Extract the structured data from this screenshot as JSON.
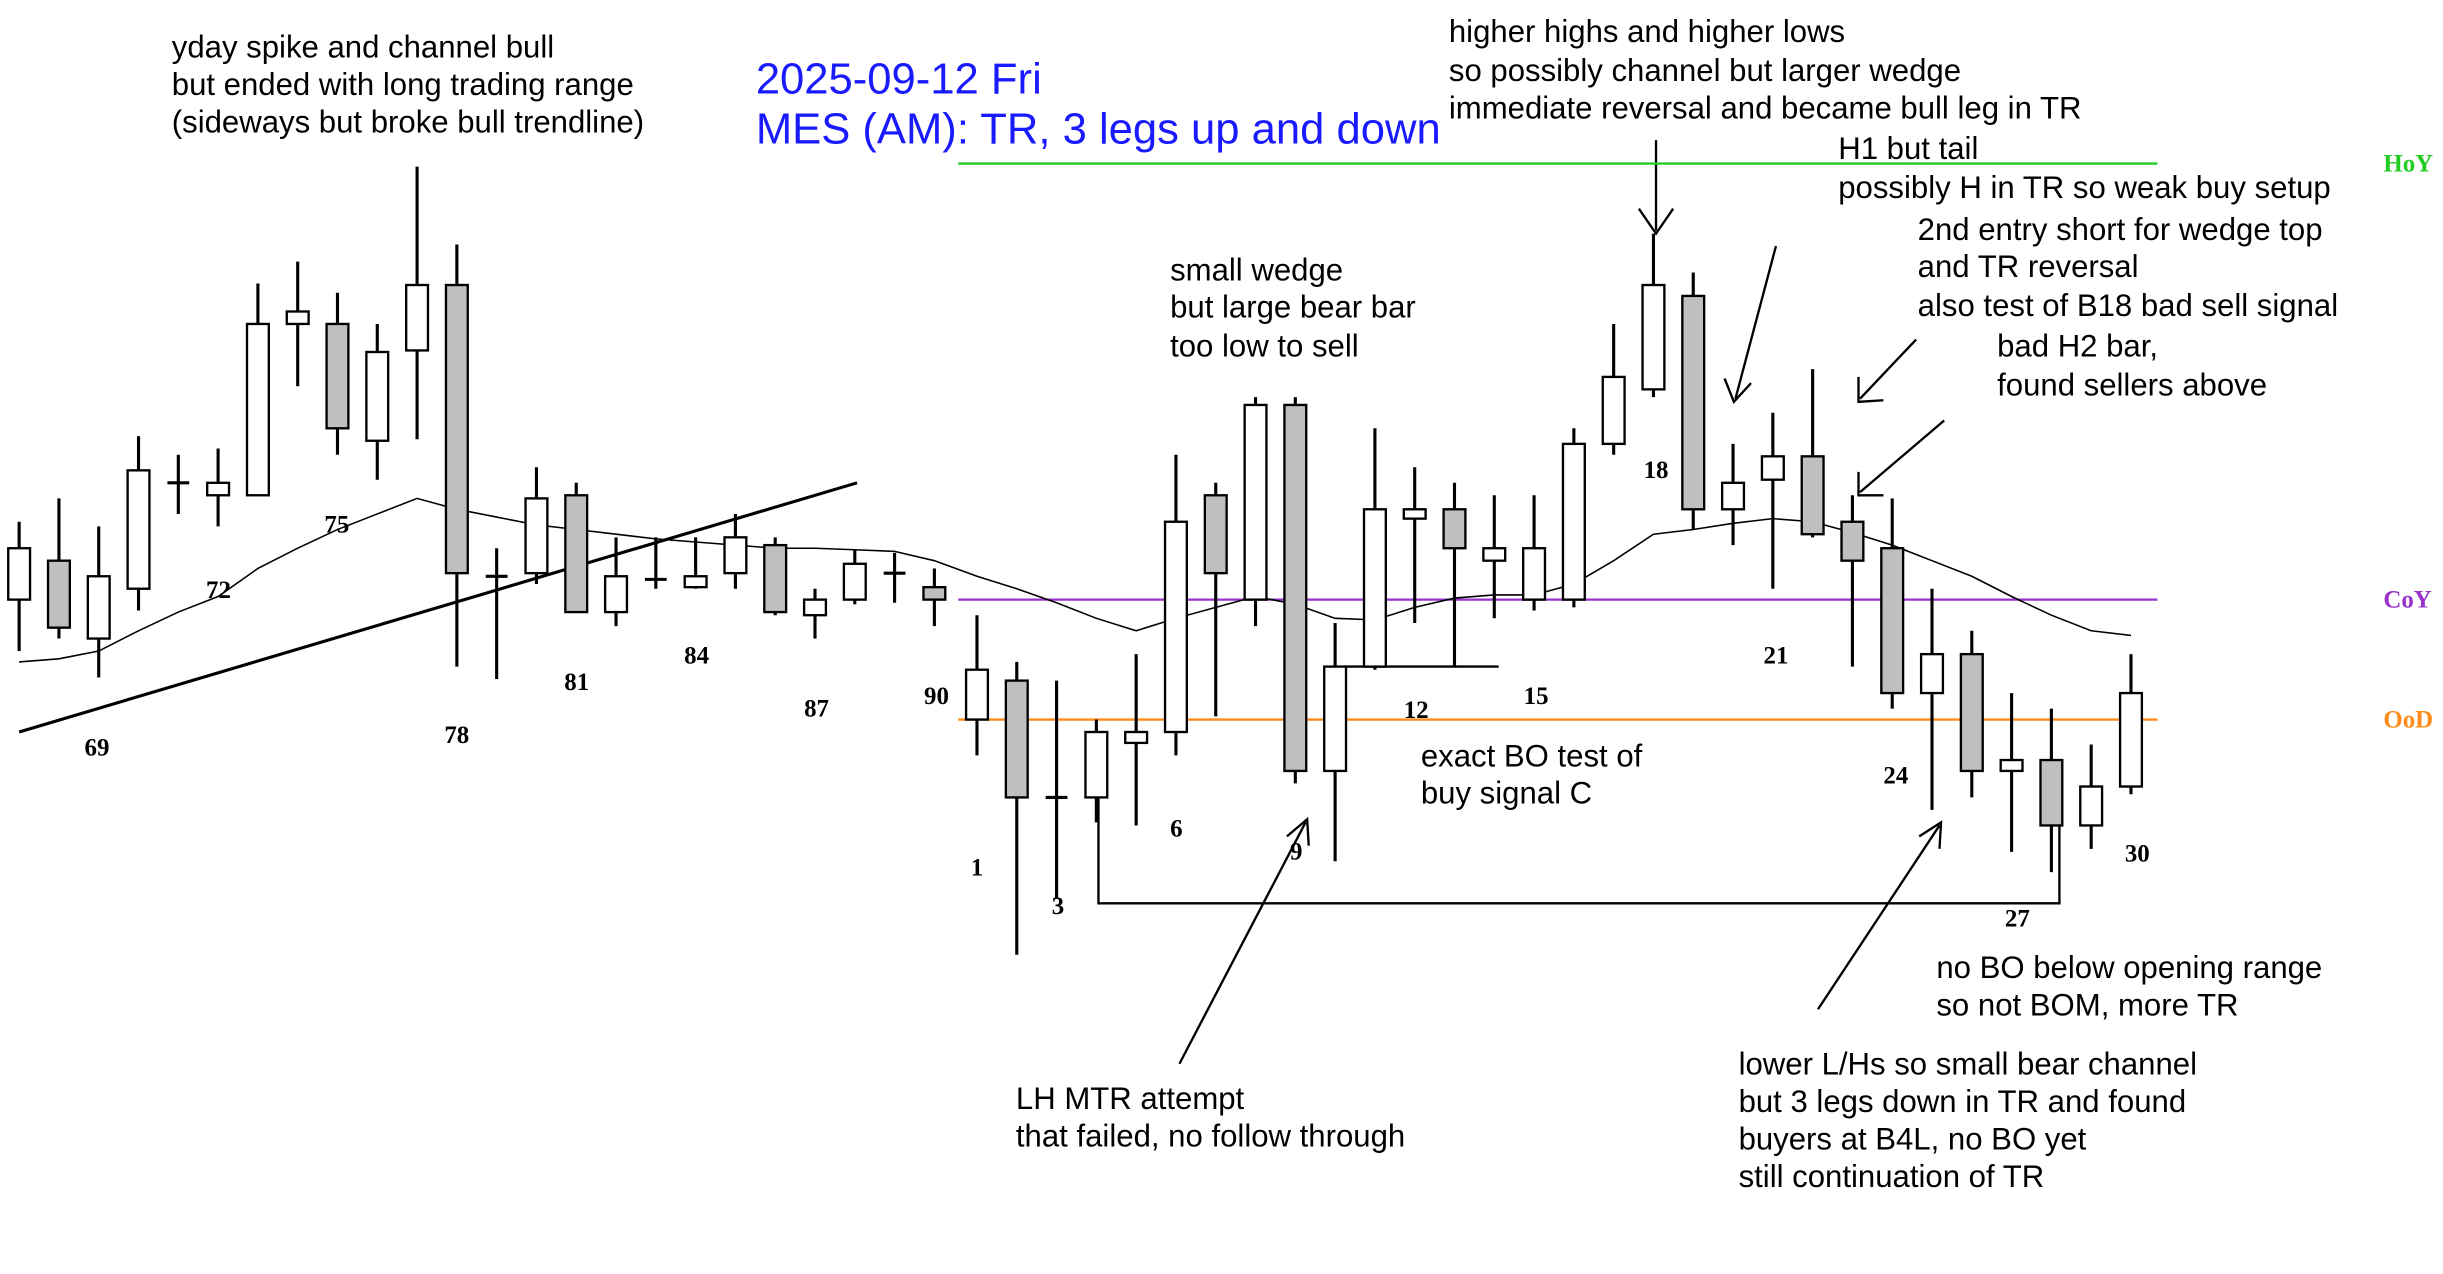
{
  "chart_data": {
    "type": "candlestick",
    "title": "2025-09-12 Fri",
    "subtitle": "MES (AM): TR, 3 legs up and down",
    "ylim": [
      6500,
      6581.8
    ],
    "prior_session": [
      [
        6543.3,
        6548.3,
        6540.0,
        6546.6
      ],
      [
        6545.8,
        6549.8,
        6540.8,
        6541.5
      ],
      [
        6540.8,
        6548.0,
        6538.3,
        6544.8
      ],
      [
        6544.0,
        6553.8,
        6542.6,
        6551.6
      ],
      [
        6550.8,
        6552.6,
        6548.8,
        6550.8
      ],
      [
        6550.0,
        6553.0,
        6548.0,
        6550.8
      ],
      [
        6550.0,
        6563.6,
        6550.0,
        6561.0
      ],
      [
        6561.0,
        6565.0,
        6557.0,
        6561.8
      ],
      [
        6561.0,
        6563.0,
        6552.6,
        6554.3
      ],
      [
        6553.5,
        6561.0,
        6551.0,
        6559.2
      ],
      [
        6559.3,
        6571.1,
        6553.6,
        6563.5
      ],
      [
        6563.5,
        6566.1,
        6539.0,
        6545.0
      ],
      [
        6544.8,
        6546.6,
        6538.2,
        6544.8
      ],
      [
        6545.0,
        6551.8,
        6544.3,
        6549.8
      ],
      [
        6550.0,
        6550.8,
        6542.5,
        6542.5
      ],
      [
        6542.5,
        6547.3,
        6541.6,
        6544.8
      ],
      [
        6544.6,
        6547.3,
        6544.0,
        6544.6
      ],
      [
        6544.1,
        6547.3,
        6544.0,
        6544.8
      ],
      [
        6545.0,
        6548.8,
        6544.0,
        6547.3
      ],
      [
        6546.8,
        6547.3,
        6542.3,
        6542.5
      ],
      [
        6542.3,
        6544.0,
        6540.8,
        6543.3
      ],
      [
        6543.3,
        6546.5,
        6543.0,
        6545.6
      ],
      [
        6545.0,
        6546.3,
        6543.1,
        6545.0
      ],
      [
        6544.1,
        6545.3,
        6541.6,
        6543.3
      ]
    ],
    "session": [
      [
        6535.6,
        6542.3,
        6533.3,
        6538.8
      ],
      [
        6538.1,
        6539.3,
        6520.5,
        6530.6
      ],
      [
        6530.6,
        6538.1,
        6524.1,
        6530.6
      ],
      [
        6530.6,
        6535.6,
        6529.0,
        6534.8
      ],
      [
        6534.1,
        6539.8,
        6528.8,
        6534.8
      ],
      [
        6534.8,
        6552.6,
        6533.3,
        6548.3
      ],
      [
        6550.0,
        6550.8,
        6535.8,
        6545.0
      ],
      [
        6543.3,
        6556.3,
        6541.6,
        6555.8
      ],
      [
        6555.8,
        6556.3,
        6531.5,
        6532.3
      ],
      [
        6532.3,
        6541.8,
        6526.5,
        6539.0
      ],
      [
        6539.0,
        6554.3,
        6538.8,
        6549.1
      ],
      [
        6548.5,
        6551.8,
        6541.8,
        6549.1
      ],
      [
        6549.1,
        6550.8,
        6539.0,
        6546.6
      ],
      [
        6545.8,
        6550.0,
        6542.1,
        6546.6
      ],
      [
        6543.3,
        6550.0,
        6542.6,
        6546.6
      ],
      [
        6543.3,
        6554.3,
        6542.8,
        6553.3
      ],
      [
        6553.3,
        6561.0,
        6552.6,
        6557.6
      ],
      [
        6556.8,
        6566.8,
        6556.3,
        6563.5
      ],
      [
        6562.8,
        6564.3,
        6547.8,
        6549.1
      ],
      [
        6549.1,
        6553.3,
        6546.8,
        6550.8
      ],
      [
        6551.0,
        6555.3,
        6544.0,
        6552.5
      ],
      [
        6552.5,
        6558.1,
        6547.3,
        6547.5
      ],
      [
        6548.3,
        6550.0,
        6539.0,
        6545.8
      ],
      [
        6546.6,
        6549.8,
        6536.3,
        6537.3
      ],
      [
        6537.3,
        6544.0,
        6529.8,
        6539.8
      ],
      [
        6539.8,
        6541.3,
        6530.6,
        6532.3
      ],
      [
        6532.3,
        6537.3,
        6527.1,
        6533.0
      ],
      [
        6533.0,
        6536.3,
        6525.8,
        6528.8
      ],
      [
        6528.8,
        6534.0,
        6527.3,
        6531.3
      ],
      [
        6531.3,
        6539.8,
        6530.8,
        6537.3
      ]
    ],
    "ema_prior": [
      6539.3,
      6539.5,
      6540.0,
      6541.3,
      6542.5,
      6543.5,
      6545.3,
      6546.6,
      6547.8,
      6548.8,
      6549.8,
      6549.1,
      6548.6,
      6548.1,
      6547.8,
      6547.5,
      6547.2,
      6547.0,
      6546.8,
      6546.6,
      6546.6,
      6546.5,
      6546.4,
      6545.8
    ],
    "ema_session": [
      6544.8,
      6544.0,
      6543.1,
      6542.1,
      6541.3,
      6542.1,
      6542.8,
      6543.5,
      6543.0,
      6542.1,
      6542.0,
      6542.8,
      6543.4,
      6543.6,
      6543.6,
      6544.3,
      6545.8,
      6547.5,
      6547.8,
      6548.2,
      6548.5,
      6548.3,
      6547.6,
      6546.8,
      6545.8,
      6544.8,
      6543.5,
      6542.3,
      6541.3,
      6541.0
    ],
    "bull_color": "#ffffff",
    "bear_color": "#bfbfbf",
    "levels": [
      {
        "label": "HoY",
        "value": 6571.3,
        "color": "#22cc22"
      },
      {
        "label": "CoY",
        "value": 6543.3,
        "color": "#9933cc"
      },
      {
        "label": "OoD",
        "value": 6535.6,
        "color": "#ff8c1a"
      }
    ],
    "bar_numbers": [
      "69",
      "72",
      "75",
      "78",
      "81",
      "84",
      "87",
      "90",
      "1",
      "3",
      "6",
      "9",
      "12",
      "15",
      "18",
      "21",
      "24",
      "27",
      "30"
    ],
    "annotations": {
      "yday": [
        "yday spike and channel bull",
        "but ended with long trading range",
        "(sideways but broke bull trendline)"
      ],
      "higher_highs": [
        "higher highs and higher lows",
        "so possibly channel but larger wedge",
        "immediate reversal and became bull leg in TR"
      ],
      "h1": [
        "H1 but tail",
        "possibly H in TR so weak buy setup"
      ],
      "second_entry": [
        "2nd entry short for wedge top",
        "and TR reversal",
        "also test of B18 bad sell signal"
      ],
      "h2": [
        "bad H2 bar,",
        "found sellers above"
      ],
      "small_wedge": [
        "small wedge",
        "but large bear bar",
        "too low to sell"
      ],
      "bo_test": [
        "exact BO test of",
        "buy signal C"
      ],
      "lh_mtr": [
        "LH MTR attempt",
        "that failed, no follow through"
      ],
      "no_bo": [
        "no BO below opening range",
        "so not BOM, more TR"
      ],
      "lower": [
        "lower L/Hs so small bear channel",
        "but 3 legs down in TR and found",
        "buyers at B4L, no BO yet",
        "still continuation of TR"
      ]
    }
  }
}
